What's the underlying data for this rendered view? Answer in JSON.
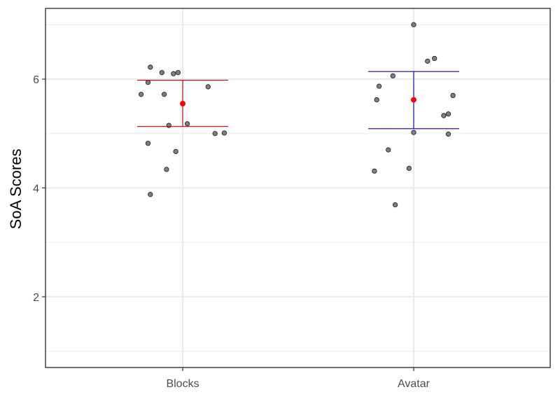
{
  "chart_data": {
    "type": "scatter",
    "title": "",
    "xlabel": "",
    "ylabel": "SoA Scores",
    "categories": [
      "Blocks",
      "Avatar"
    ],
    "ylim": [
      0.7,
      7.3
    ],
    "y_ticks": [
      2,
      4,
      6
    ],
    "y_tick_labels": [
      "2",
      "4",
      "6"
    ],
    "grid": true,
    "legend": "none",
    "colors": {
      "points_fill": "#7f7f7f",
      "points_stroke": "#262626",
      "mean": "#ff0000",
      "grid": "#ebebeb",
      "panel_border": "#333333"
    },
    "series": [
      {
        "category": "Blocks",
        "color": "#cc0000",
        "mean": 5.55,
        "interval": [
          5.13,
          5.98
        ],
        "points": [
          {
            "offset": -0.18,
            "y": 5.72
          },
          {
            "offset": -0.15,
            "y": 4.82
          },
          {
            "offset": -0.15,
            "y": 5.94
          },
          {
            "offset": -0.14,
            "y": 6.22
          },
          {
            "offset": -0.14,
            "y": 3.88
          },
          {
            "offset": -0.09,
            "y": 6.12
          },
          {
            "offset": -0.08,
            "y": 5.72
          },
          {
            "offset": -0.07,
            "y": 4.34
          },
          {
            "offset": -0.06,
            "y": 5.15
          },
          {
            "offset": -0.04,
            "y": 6.1
          },
          {
            "offset": -0.03,
            "y": 4.67
          },
          {
            "offset": -0.02,
            "y": 6.12
          },
          {
            "offset": 0.02,
            "y": 5.18
          },
          {
            "offset": 0.11,
            "y": 5.86
          },
          {
            "offset": 0.14,
            "y": 5.0
          },
          {
            "offset": 0.18,
            "y": 5.01
          }
        ]
      },
      {
        "category": "Avatar",
        "color": "#0000cc",
        "mean": 5.62,
        "interval": [
          5.09,
          6.14
        ],
        "points": [
          {
            "offset": -0.17,
            "y": 4.31
          },
          {
            "offset": -0.16,
            "y": 5.62
          },
          {
            "offset": -0.15,
            "y": 5.87
          },
          {
            "offset": -0.11,
            "y": 4.7
          },
          {
            "offset": -0.09,
            "y": 6.06
          },
          {
            "offset": -0.08,
            "y": 3.69
          },
          {
            "offset": -0.02,
            "y": 4.36
          },
          {
            "offset": 0.0,
            "y": 7.0
          },
          {
            "offset": 0.0,
            "y": 5.02
          },
          {
            "offset": 0.06,
            "y": 6.33
          },
          {
            "offset": 0.09,
            "y": 6.38
          },
          {
            "offset": 0.13,
            "y": 5.33
          },
          {
            "offset": 0.15,
            "y": 5.36
          },
          {
            "offset": 0.15,
            "y": 4.99
          },
          {
            "offset": 0.17,
            "y": 5.7
          }
        ]
      }
    ]
  }
}
